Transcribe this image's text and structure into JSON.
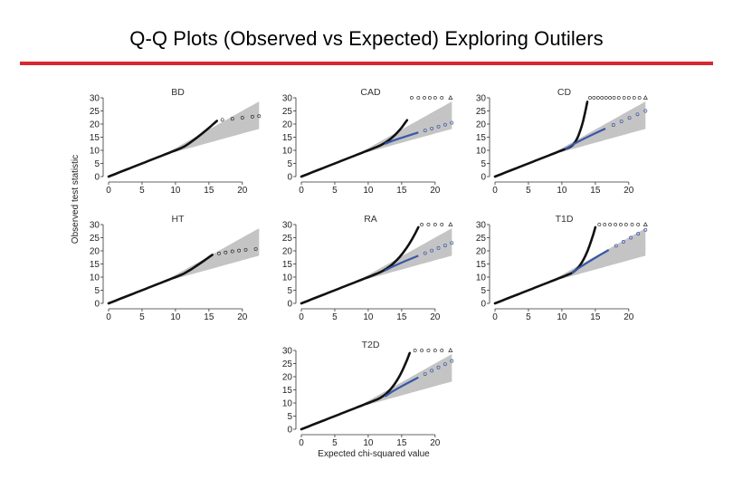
{
  "page": {
    "title": "Q-Q Plots (Observed vs Expected) Exploring Outilers",
    "rule_color": "#d7282f"
  },
  "chart_data": {
    "type": "scatter",
    "ylabel": "Observed test statistic",
    "xlabel": "Expected chi-squared value",
    "xlim": [
      0,
      23
    ],
    "ylim": [
      0,
      30
    ],
    "xticks": [
      0,
      5,
      10,
      15,
      20
    ],
    "yticks": [
      0,
      5,
      10,
      15,
      20,
      25,
      30
    ],
    "colors": {
      "all_snps": "#111111",
      "excluded": "#3a57a8",
      "band": "#c4c4c4",
      "axis": "#333333"
    },
    "panels": [
      {
        "title": "BD",
        "deviation": "none",
        "black_end": [
          16.2,
          21.2
        ],
        "black_tail": [
          [
            17,
            21.6
          ],
          [
            18.5,
            22.0
          ],
          [
            20,
            22.4
          ],
          [
            21.5,
            22.8
          ],
          [
            22.5,
            23.0
          ]
        ],
        "cap_points": [],
        "blue_start": null,
        "blue_end": null
      },
      {
        "title": "CAD",
        "deviation": "strong",
        "black_end": [
          15.8,
          21.5
        ],
        "black_tail": [],
        "cap_points": [
          16.5,
          17.5,
          18.4,
          19.2,
          20.0,
          21.0,
          22.3
        ],
        "blue_start": 12.5,
        "blue_end": [
          22.5,
          20.5
        ]
      },
      {
        "title": "CD",
        "deviation": "strong",
        "black_end": [
          13.8,
          28.5
        ],
        "black_tail": [],
        "cap_points": [
          14.2,
          14.8,
          15.4,
          16.0,
          16.6,
          17.2,
          17.8,
          18.5,
          19.3,
          20.0,
          20.8,
          21.6,
          22.5
        ],
        "blue_start": 10.5,
        "blue_end": [
          22.5,
          25.0
        ]
      },
      {
        "title": "HT",
        "deviation": "none",
        "black_end": [
          15.5,
          18.5
        ],
        "black_tail": [
          [
            16.5,
            19.0
          ],
          [
            17.5,
            19.4
          ],
          [
            18.5,
            19.8
          ],
          [
            19.5,
            20.1
          ],
          [
            20.5,
            20.4
          ],
          [
            22.0,
            20.7
          ]
        ],
        "cap_points": [],
        "blue_start": null,
        "blue_end": null
      },
      {
        "title": "RA",
        "deviation": "strong",
        "black_end": [
          17.5,
          29.0
        ],
        "black_tail": [],
        "cap_points": [
          18.0,
          19.0,
          20.0,
          21.0,
          22.3
        ],
        "blue_start": 12.5,
        "blue_end": [
          22.5,
          23.0
        ]
      },
      {
        "title": "T1D",
        "deviation": "strong",
        "black_end": [
          15.0,
          29.0
        ],
        "black_tail": [],
        "cap_points": [
          15.6,
          16.4,
          17.2,
          18.0,
          18.8,
          19.6,
          20.5,
          21.4,
          22.5
        ],
        "blue_start": 11.5,
        "blue_end": [
          22.5,
          28.0
        ]
      },
      {
        "title": "T2D",
        "deviation": "strong",
        "black_end": [
          16.2,
          29.0
        ],
        "black_tail": [],
        "cap_points": [
          17.0,
          18.0,
          19.0,
          20.0,
          21.0,
          22.3
        ],
        "blue_start": 12.5,
        "blue_end": [
          22.5,
          26.0
        ]
      }
    ]
  }
}
